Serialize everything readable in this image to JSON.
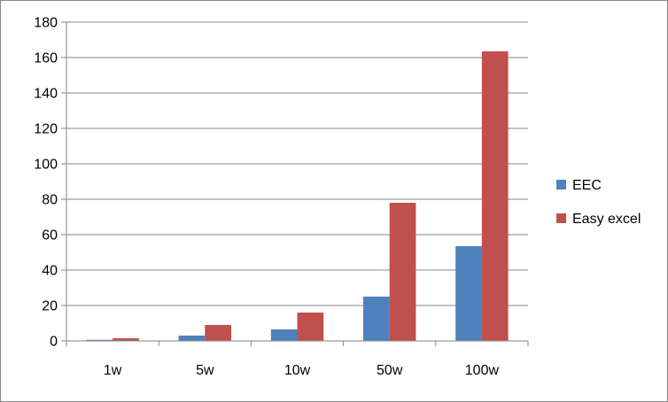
{
  "chart_data": {
    "type": "bar",
    "categories": [
      "1w",
      "5w",
      "10w",
      "50w",
      "100w"
    ],
    "series": [
      {
        "name": "EEC",
        "color": "#4f81bd",
        "values": [
          0.6,
          3,
          6.5,
          25,
          53.5
        ]
      },
      {
        "name": "Easy excel",
        "color": "#c0504d",
        "values": [
          1.5,
          9,
          16,
          78,
          163.5
        ]
      }
    ],
    "ylim": [
      0,
      180
    ],
    "y_ticks": [
      0,
      20,
      40,
      60,
      80,
      100,
      120,
      140,
      160,
      180
    ],
    "y_tick_labels": [
      "0",
      "20",
      "40",
      "60",
      "80",
      "100",
      "120",
      "140",
      "160",
      "180"
    ],
    "grid": true,
    "legend_position": "right",
    "title": "",
    "xlabel": "",
    "ylabel": ""
  }
}
